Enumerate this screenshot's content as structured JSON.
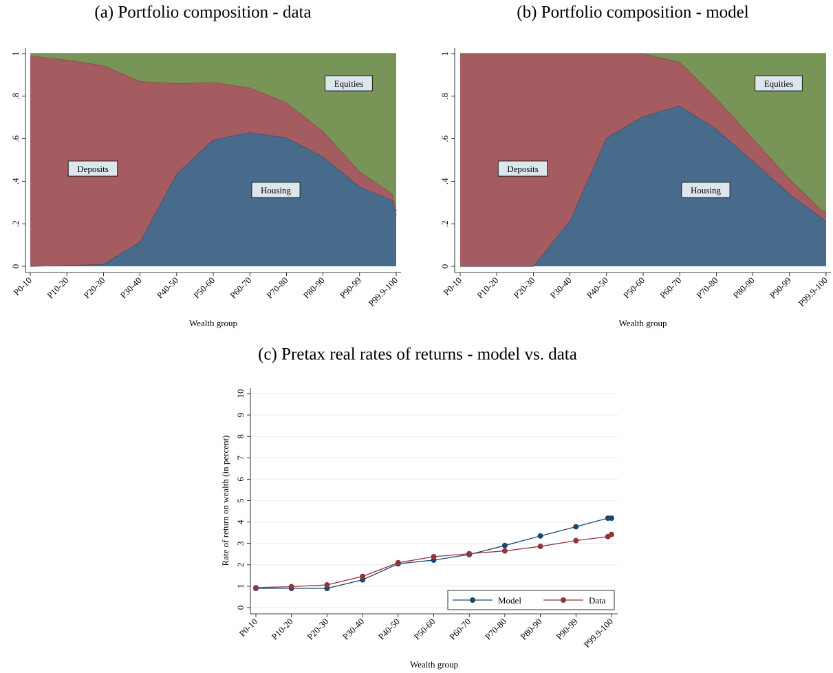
{
  "chart_data": [
    {
      "type": "area",
      "title": "(a) Portfolio composition - data",
      "xlabel": "Wealth group",
      "x": [
        1,
        2,
        3,
        4,
        5,
        6,
        7,
        8,
        9,
        10,
        10.9,
        11
      ],
      "xlim": [
        1,
        11
      ],
      "xticks": [
        {
          "value": 1,
          "label": "P0-10"
        },
        {
          "value": 2,
          "label": "P10-20"
        },
        {
          "value": 3,
          "label": "P20-30"
        },
        {
          "value": 4,
          "label": "P30-40"
        },
        {
          "value": 5,
          "label": "P40-50"
        },
        {
          "value": 6,
          "label": "P50-60"
        },
        {
          "value": 7,
          "label": "P60-70"
        },
        {
          "value": 8,
          "label": "P70-80"
        },
        {
          "value": 9,
          "label": "P80-90"
        },
        {
          "value": 10,
          "label": "P90-99"
        },
        {
          "value": 11,
          "label": "P99.9-100"
        }
      ],
      "ylim": [
        0,
        1
      ],
      "yticks": [
        0,
        {
          "value": 0.2,
          "label": ".2"
        },
        {
          "value": 0.4,
          "label": ".4"
        },
        {
          "value": 0.6,
          "label": ".6"
        },
        {
          "value": 0.8,
          "label": ".8"
        },
        1
      ],
      "series": [
        {
          "name": "Housing",
          "color": "#486b8c",
          "line": "#2c4a6a",
          "values": [
            0,
            0.005,
            0.01,
            0.115,
            0.435,
            0.595,
            0.63,
            0.605,
            0.515,
            0.375,
            0.31,
            0.24
          ]
        },
        {
          "name": "Deposits",
          "color": "#a55c61",
          "line": "#8a3a40",
          "values": [
            0.99,
            0.965,
            0.935,
            0.755,
            0.425,
            0.27,
            0.21,
            0.165,
            0.12,
            0.07,
            0.03,
            0.02
          ]
        },
        {
          "name": "Equities",
          "color": "#789456",
          "line": "#5d7a3e",
          "values": [
            0.01,
            0.03,
            0.055,
            0.13,
            0.14,
            0.135,
            0.16,
            0.23,
            0.365,
            0.555,
            0.66,
            0.74
          ]
        }
      ]
    },
    {
      "type": "area",
      "title": "(b) Portfolio composition - model",
      "xlabel": "Wealth group",
      "x": [
        1,
        2,
        3,
        4,
        5,
        6,
        7,
        8,
        9,
        10,
        10.9,
        11
      ],
      "xlim": [
        1,
        11
      ],
      "xticks": [
        {
          "value": 1,
          "label": "P0-10"
        },
        {
          "value": 2,
          "label": "P10-20"
        },
        {
          "value": 3,
          "label": "P20-30"
        },
        {
          "value": 4,
          "label": "P30-40"
        },
        {
          "value": 5,
          "label": "P40-50"
        },
        {
          "value": 6,
          "label": "P50-60"
        },
        {
          "value": 7,
          "label": "P60-70"
        },
        {
          "value": 8,
          "label": "P70-80"
        },
        {
          "value": 9,
          "label": "P80-90"
        },
        {
          "value": 10,
          "label": "P90-99"
        },
        {
          "value": 11,
          "label": "P99.9-100"
        }
      ],
      "ylim": [
        0,
        1
      ],
      "yticks": [
        0,
        {
          "value": 0.2,
          "label": ".2"
        },
        {
          "value": 0.4,
          "label": ".4"
        },
        {
          "value": 0.6,
          "label": ".6"
        },
        {
          "value": 0.8,
          "label": ".8"
        },
        1
      ],
      "series": [
        {
          "name": "Housing",
          "color": "#486b8c",
          "line": "#2c4a6a",
          "values": [
            0,
            0,
            0,
            0.215,
            0.605,
            0.705,
            0.755,
            0.645,
            0.495,
            0.34,
            0.225,
            0.21
          ]
        },
        {
          "name": "Deposits",
          "color": "#a55c61",
          "line": "#8a3a40",
          "values": [
            1,
            1,
            1,
            0.785,
            0.395,
            0.295,
            0.205,
            0.145,
            0.105,
            0.07,
            0.035,
            0.05
          ]
        },
        {
          "name": "Equities",
          "color": "#789456",
          "line": "#5d7a3e",
          "values": [
            0,
            0,
            0,
            0,
            0,
            0,
            0.04,
            0.21,
            0.4,
            0.59,
            0.74,
            0.74
          ]
        }
      ]
    },
    {
      "type": "line",
      "title": "(c) Pretax real rates of returns - model vs. data",
      "xlabel": "Wealth group",
      "ylabel": "Rate of return on wealth (in percent)",
      "x": [
        1,
        2,
        3,
        4,
        5,
        6,
        7,
        8,
        9,
        10,
        10.9,
        11
      ],
      "xlim": [
        1,
        11
      ],
      "xticks": [
        {
          "value": 1,
          "label": "P0-10"
        },
        {
          "value": 2,
          "label": "P10-20"
        },
        {
          "value": 3,
          "label": "P20-30"
        },
        {
          "value": 4,
          "label": "P30-40"
        },
        {
          "value": 5,
          "label": "P40-50"
        },
        {
          "value": 6,
          "label": "P50-60"
        },
        {
          "value": 7,
          "label": "P60-70"
        },
        {
          "value": 8,
          "label": "P70-80"
        },
        {
          "value": 9,
          "label": "P80-90"
        },
        {
          "value": 10,
          "label": "P90-99"
        },
        {
          "value": 11,
          "label": "P99.9-100"
        }
      ],
      "ylim": [
        0,
        10
      ],
      "yticks": [
        0,
        1,
        2,
        3,
        4,
        5,
        6,
        7,
        8,
        9,
        10
      ],
      "grid": true,
      "series": [
        {
          "name": "Model",
          "color": "#1a476f",
          "values": [
            0.9,
            0.9,
            0.9,
            1.3,
            2.05,
            2.22,
            2.48,
            2.9,
            3.35,
            3.78,
            4.18,
            4.18
          ]
        },
        {
          "name": "Data",
          "color": "#90353b",
          "values": [
            0.93,
            0.98,
            1.06,
            1.46,
            2.1,
            2.38,
            2.52,
            2.65,
            2.86,
            3.13,
            3.32,
            3.42
          ]
        }
      ]
    }
  ]
}
